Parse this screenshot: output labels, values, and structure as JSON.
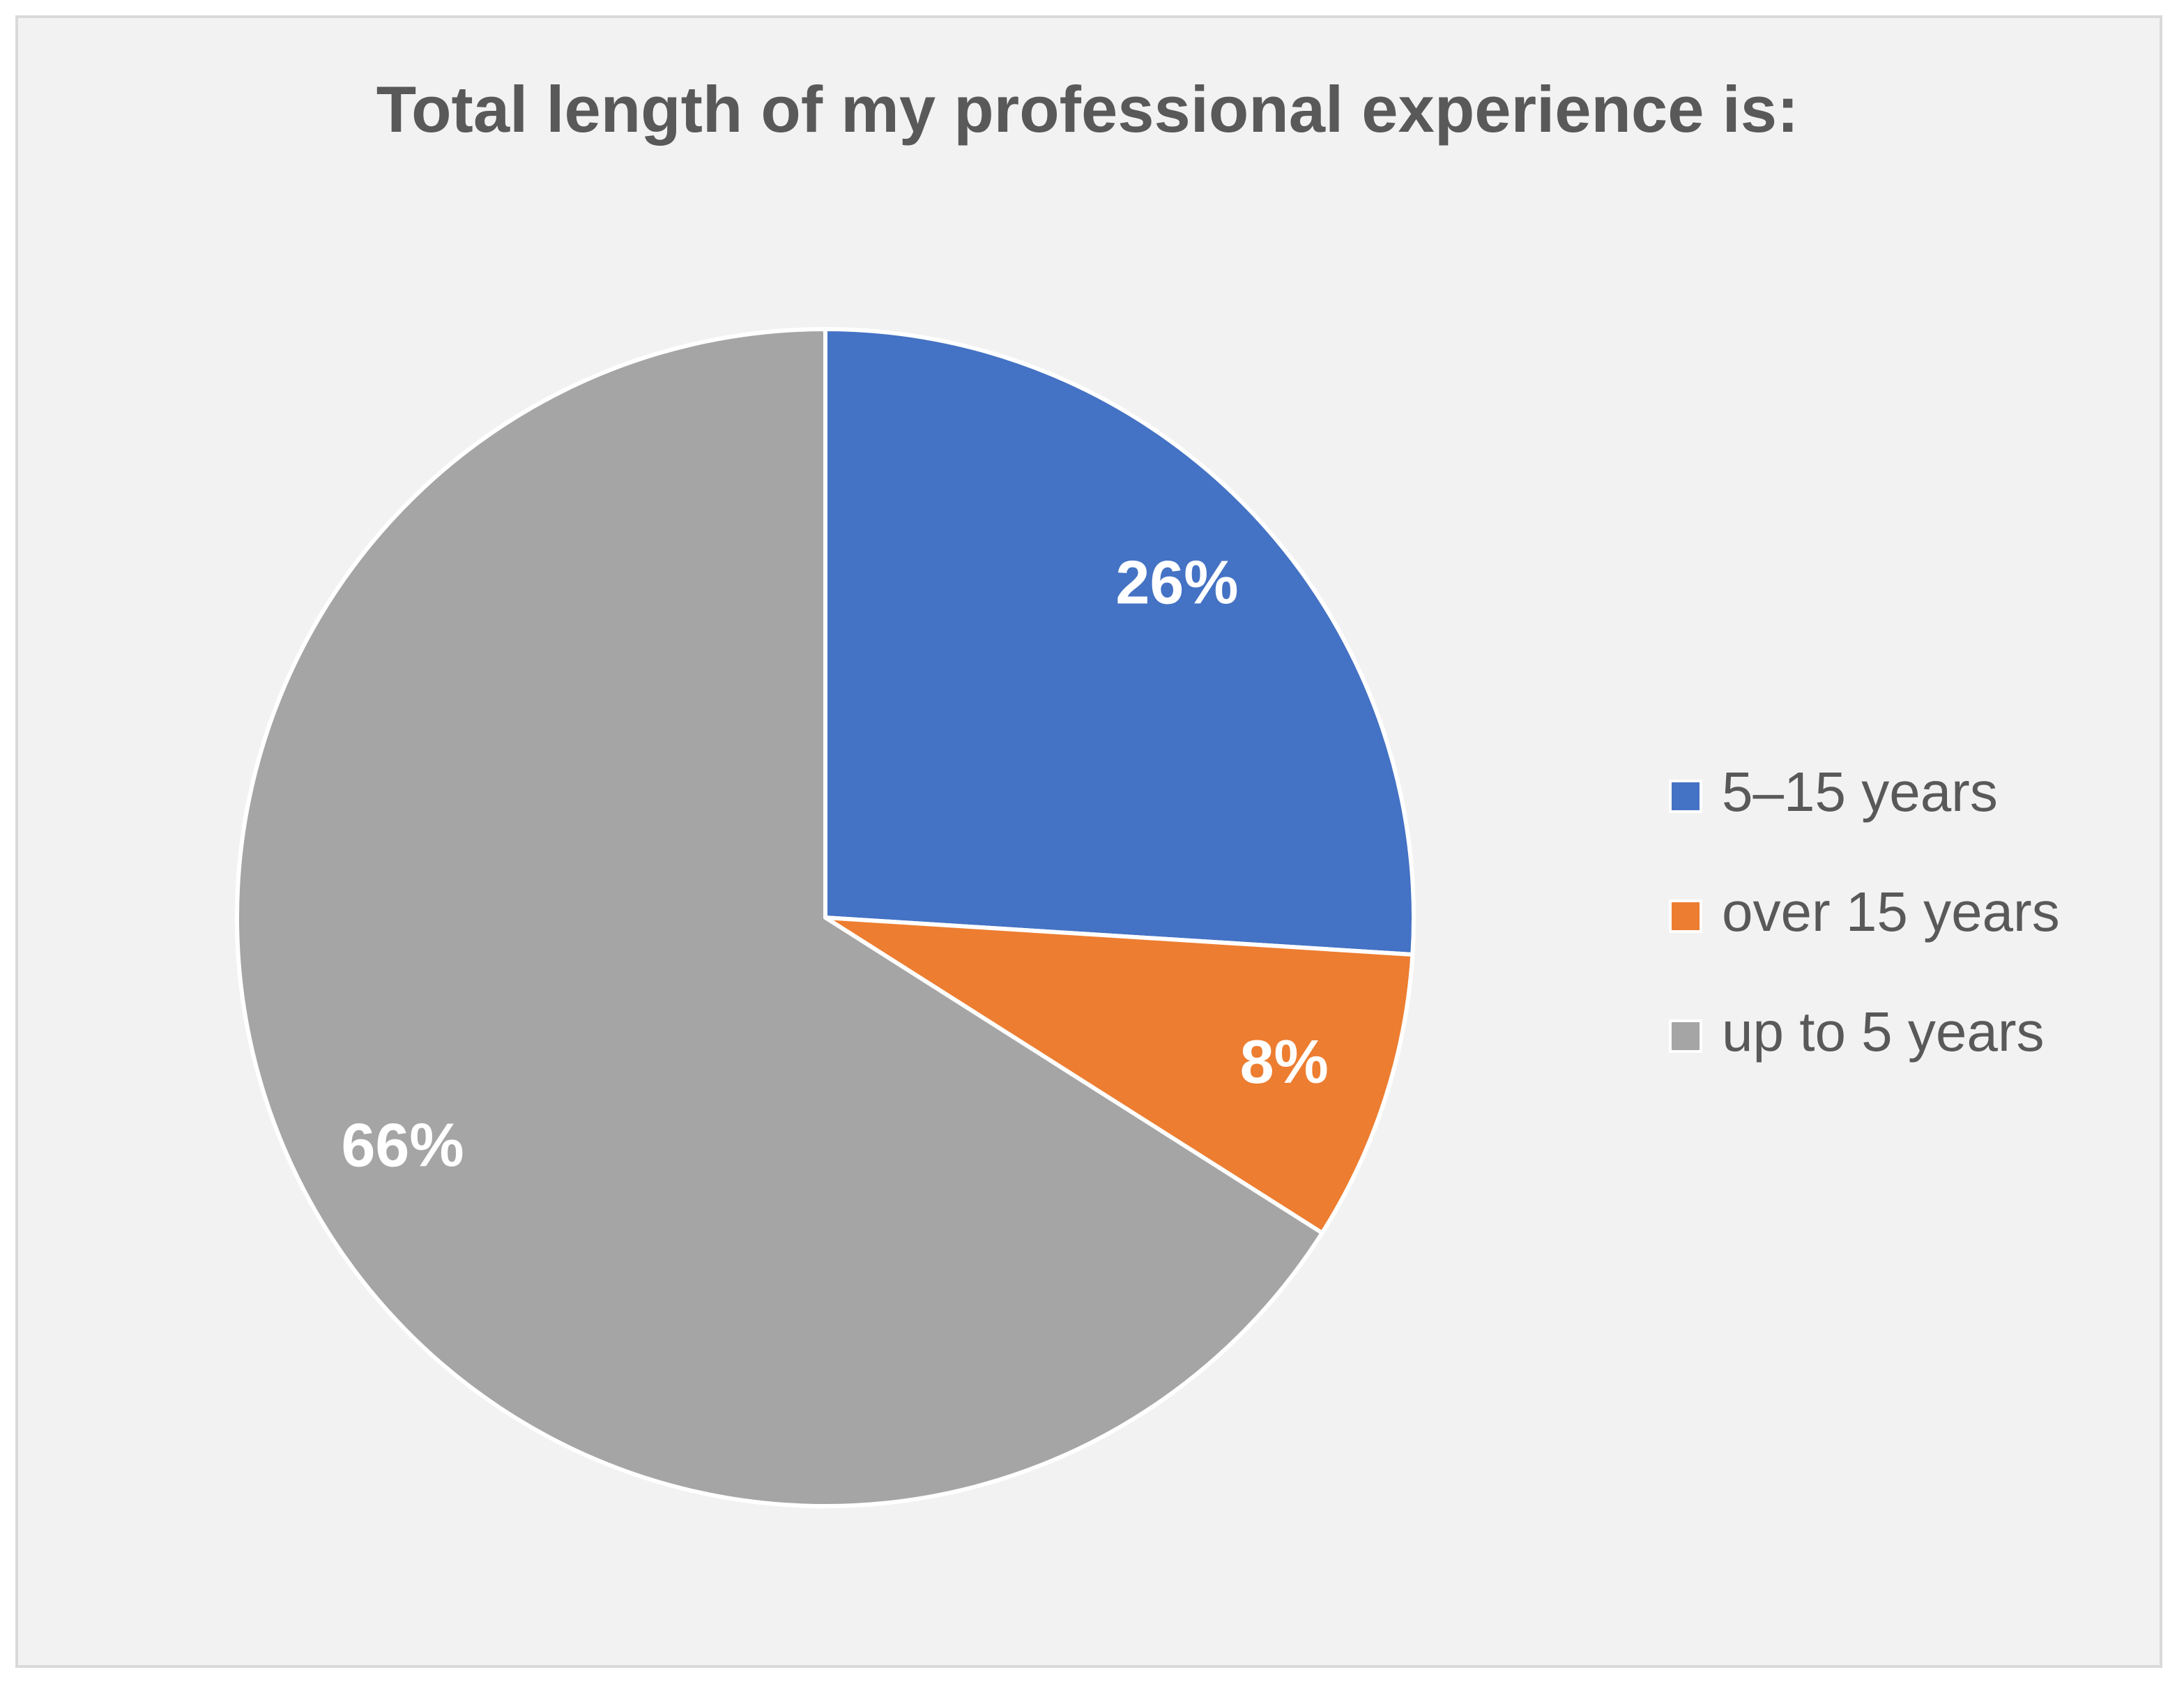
{
  "chart_data": {
    "type": "pie",
    "title": "Total length of my professional experience is:",
    "categories": [
      "5–15 years",
      "over 15 years",
      "up to 5 years"
    ],
    "values": [
      26,
      8,
      66
    ],
    "value_labels": [
      "26%",
      "8%",
      "66%"
    ],
    "colors": [
      "#4472c4",
      "#ed7d31",
      "#a5a5a5"
    ],
    "legend": "right"
  }
}
